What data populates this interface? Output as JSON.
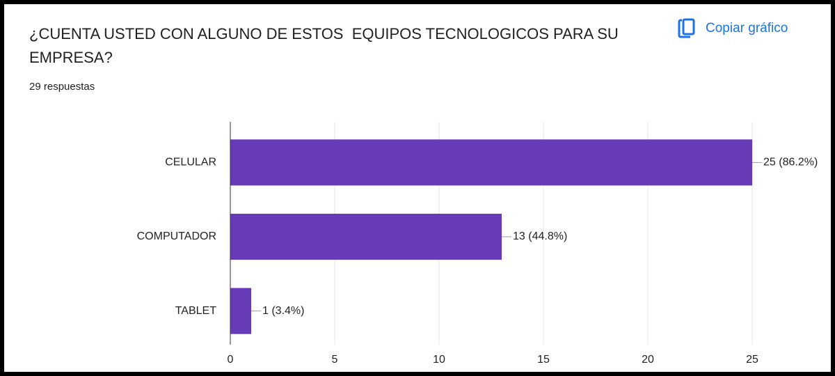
{
  "header": {
    "title": "¿CUENTA USTED CON ALGUNO DE ESTOS  EQUIPOS TECNOLOGICOS PARA SU EMPRESA?",
    "responses": "29 respuestas",
    "copy_button": "Copiar gráfico"
  },
  "chart_data": {
    "type": "bar",
    "orientation": "horizontal",
    "categories": [
      "CELULAR",
      "COMPUTADOR",
      "TABLET"
    ],
    "values": [
      25,
      13,
      1
    ],
    "value_labels": [
      "25 (86.2%)",
      "13 (44.8%)",
      "1 (3.4%)"
    ],
    "color": "#673ab7",
    "xlim": [
      0,
      25
    ],
    "xticks": [
      0,
      5,
      10,
      15,
      20,
      25
    ],
    "grid": true
  }
}
